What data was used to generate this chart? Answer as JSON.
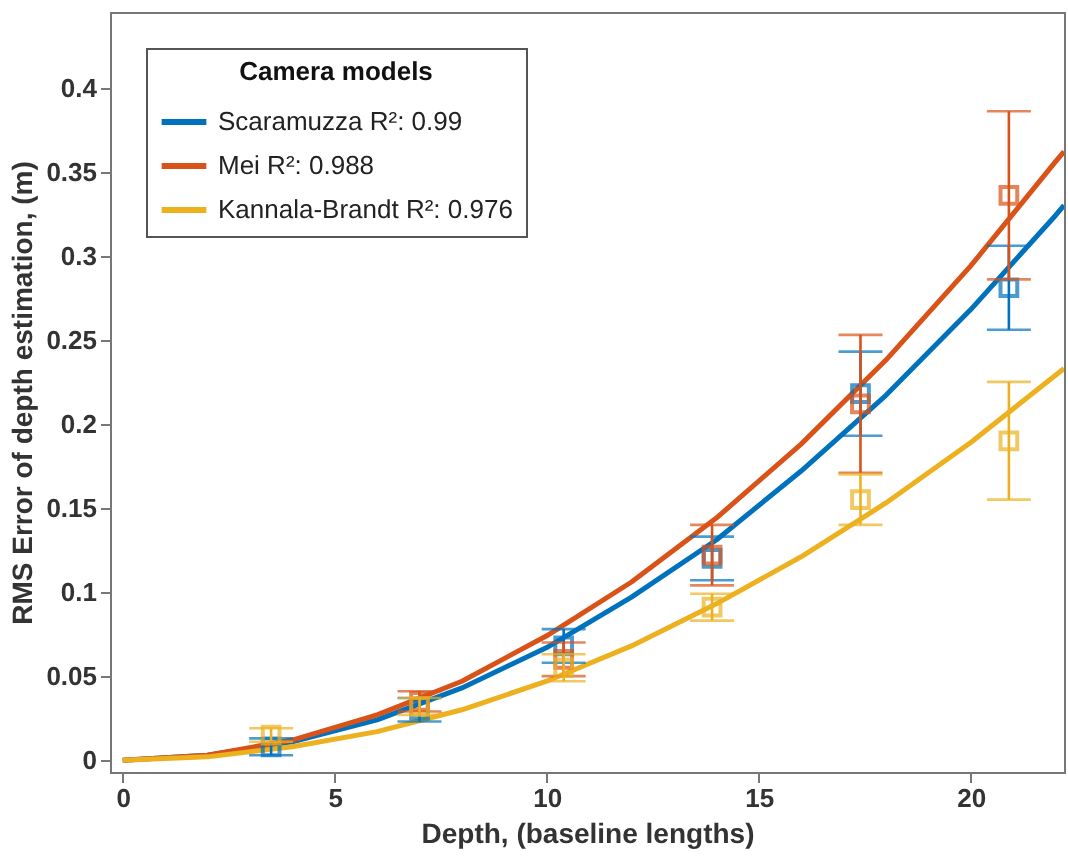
{
  "chart_data": {
    "type": "scatter",
    "xlabel": "Depth, (baseline lengths)",
    "ylabel": "RMS Error of depth estimation, (m)",
    "legend_title": "Camera models",
    "legend": "top left",
    "grid": false,
    "marker": "square",
    "xlim": [
      -0.3,
      22.2
    ],
    "xticks": [
      0,
      5,
      10,
      15,
      20
    ],
    "ylim": [
      -0.007,
      0.445
    ],
    "yticks": [
      0,
      0.05,
      0.1,
      0.15,
      0.2,
      0.25,
      0.3,
      0.35,
      0.4
    ],
    "series": [
      {
        "color": "#0072bd",
        "x": [
          3.5,
          7,
          10.4,
          13.9,
          17.4,
          20.9
        ],
        "values": [
          0.008,
          0.03,
          0.068,
          0.12,
          0.218,
          0.281
        ],
        "errors": [
          0.005,
          0.007,
          0.01,
          0.013,
          0.025,
          0.025
        ]
      },
      {
        "color": "#d95319",
        "x": [
          7,
          10.4,
          13.9,
          17.4,
          20.9
        ],
        "values": [
          0.035,
          0.06,
          0.122,
          0.212,
          0.336
        ],
        "errors": [
          0.006,
          0.01,
          0.018,
          0.041,
          0.05
        ]
      },
      {
        "color": "#edb120",
        "x": [
          3.5,
          7,
          10.4,
          13.9,
          17.4,
          20.9
        ],
        "values": [
          0.015,
          0.032,
          0.055,
          0.091,
          0.155,
          0.19
        ],
        "errors": [
          0.004,
          0.005,
          0.008,
          0.008,
          0.015,
          0.035
        ]
      },
      {
        "type": "line",
        "name": "Scaramuzza R²: 0.99",
        "color": "#0072bd",
        "line_style": "solid",
        "marker": "none",
        "x": [
          0,
          2,
          4,
          6,
          8,
          10,
          12,
          14,
          16,
          18,
          20,
          22,
          22.2
        ],
        "values": [
          0,
          0.003,
          0.011,
          0.024,
          0.043,
          0.067,
          0.097,
          0.131,
          0.172,
          0.217,
          0.268,
          0.324,
          0.33
        ]
      },
      {
        "type": "line",
        "name": "Mei R²: 0.988",
        "color": "#d95319",
        "line_style": "solid",
        "marker": "none",
        "x": [
          0,
          2,
          4,
          6,
          8,
          10,
          12,
          14,
          16,
          18,
          20,
          22,
          22.2
        ],
        "values": [
          0,
          0.003,
          0.012,
          0.027,
          0.047,
          0.074,
          0.106,
          0.144,
          0.188,
          0.238,
          0.294,
          0.356,
          0.362
        ]
      },
      {
        "type": "line",
        "name": "Kannala-Brandt R²: 0.976",
        "color": "#edb120",
        "line_style": "solid",
        "marker": "none",
        "x": [
          0,
          2,
          4,
          6,
          8,
          10,
          12,
          14,
          16,
          18,
          20,
          22,
          22.2
        ],
        "values": [
          0,
          0.002,
          0.008,
          0.017,
          0.03,
          0.047,
          0.068,
          0.093,
          0.121,
          0.153,
          0.189,
          0.229,
          0.233
        ]
      }
    ]
  }
}
